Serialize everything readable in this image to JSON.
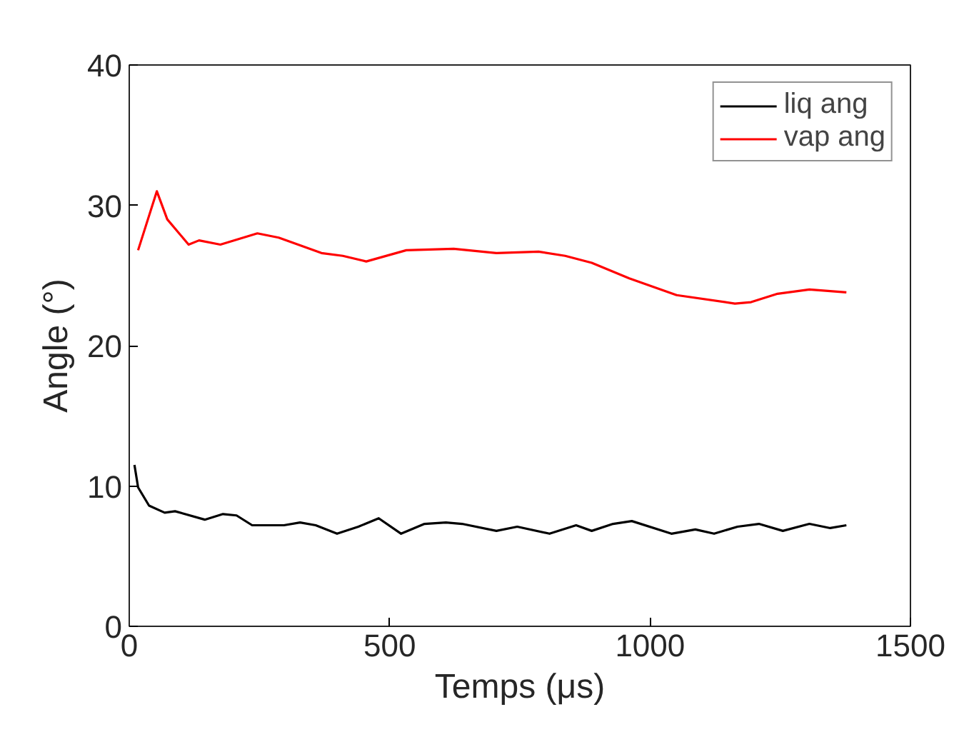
{
  "chart_data": {
    "type": "line",
    "xlabel": "Temps (μs)",
    "ylabel": "Angle (°)",
    "xlim": [
      0,
      1500
    ],
    "ylim": [
      0,
      40
    ],
    "xticks": [
      0,
      500,
      1000,
      1500
    ],
    "yticks": [
      0,
      10,
      20,
      30,
      40
    ],
    "grid": false,
    "legend": "top right",
    "line_style": "solid",
    "marker": "none",
    "series": [
      {
        "name": "liq ang",
        "color": "#000000",
        "x": [
          10,
          17,
          38,
          68,
          88,
          145,
          180,
          206,
          236,
          297,
          328,
          358,
          399,
          440,
          479,
          522,
          567,
          608,
          639,
          705,
          745,
          807,
          858,
          888,
          929,
          965,
          1041,
          1087,
          1123,
          1168,
          1209,
          1255,
          1306,
          1346,
          1377
        ],
        "values": [
          11.5,
          9.9,
          8.6,
          8.1,
          8.2,
          7.6,
          8.0,
          7.9,
          7.2,
          7.2,
          7.4,
          7.2,
          6.6,
          7.1,
          7.7,
          6.6,
          7.3,
          7.4,
          7.3,
          6.8,
          7.1,
          6.6,
          7.2,
          6.8,
          7.3,
          7.5,
          6.6,
          6.9,
          6.6,
          7.1,
          7.3,
          6.8,
          7.3,
          7.0,
          7.2
        ]
      },
      {
        "name": "vap ang",
        "color": "#ff0000",
        "x": [
          17,
          53,
          73,
          114,
          134,
          175,
          246,
          287,
          369,
          410,
          455,
          532,
          623,
          705,
          786,
          837,
          888,
          960,
          1051,
          1163,
          1194,
          1245,
          1306,
          1377
        ],
        "values": [
          26.8,
          31.0,
          29.0,
          27.2,
          27.5,
          27.2,
          28.0,
          27.7,
          26.6,
          26.4,
          26.0,
          26.8,
          26.9,
          26.6,
          26.7,
          26.4,
          25.9,
          24.8,
          23.6,
          23.0,
          23.1,
          23.7,
          24.0,
          23.8
        ]
      }
    ]
  }
}
